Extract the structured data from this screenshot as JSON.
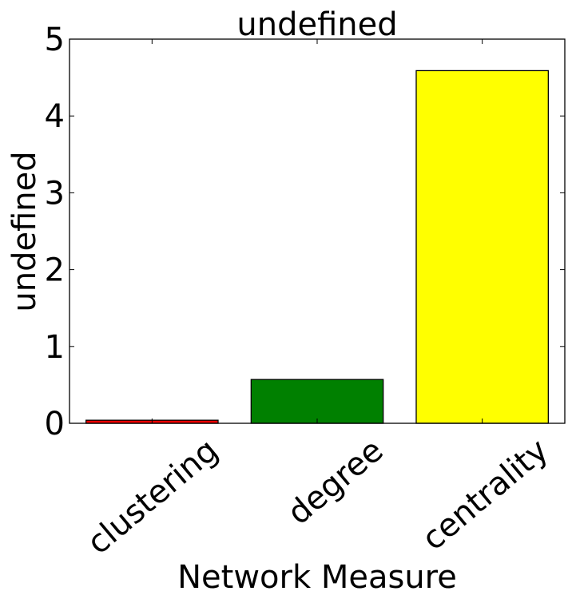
{
  "chart_data": {
    "type": "bar",
    "title": "undefined",
    "xlabel": "Network Measure",
    "ylabel": "undefined",
    "categories": [
      "clustering",
      "degree",
      "centrality"
    ],
    "values": [
      0.04,
      0.57,
      4.59
    ],
    "colors": [
      "#ff0000",
      "#008000",
      "#ffff00"
    ],
    "ylim": [
      0,
      5
    ],
    "yticks": [
      "0",
      "1",
      "2",
      "3",
      "4",
      "5"
    ],
    "grid": false
  }
}
